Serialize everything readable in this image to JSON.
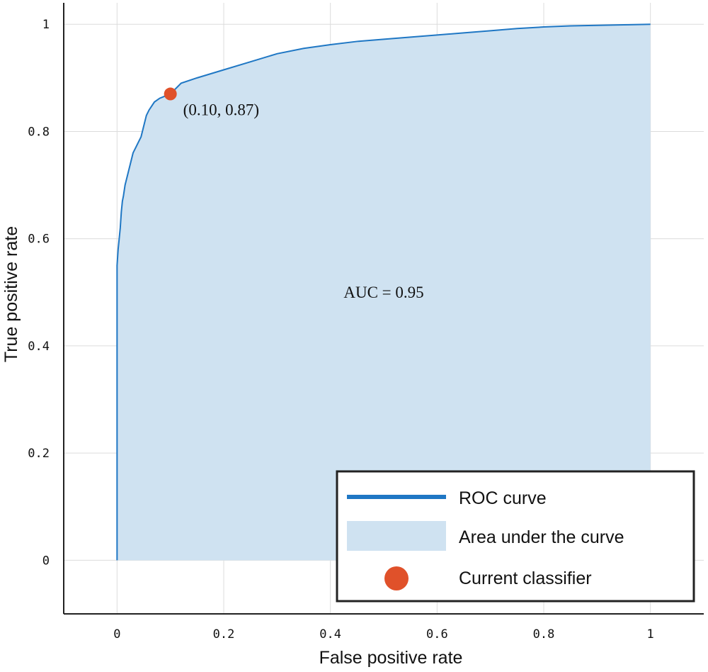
{
  "chart_data": {
    "type": "area",
    "xlabel": "False positive rate",
    "ylabel": "True positive rate",
    "xlim": [
      -0.1,
      1.1
    ],
    "ylim": [
      -0.1,
      1.04
    ],
    "xticks": [
      0,
      0.2,
      0.4,
      0.6,
      0.8,
      1
    ],
    "yticks": [
      0,
      0.2,
      0.4,
      0.6,
      0.8,
      1
    ],
    "xtick_labels": [
      "0",
      "0.2",
      "0.4",
      "0.6",
      "0.8",
      "1"
    ],
    "ytick_labels": [
      "0",
      "0.2",
      "0.4",
      "0.6",
      "0.8",
      "1"
    ],
    "grid": true,
    "legend_position": "bottom-right",
    "colors": {
      "curve": "#1f77c4",
      "area": "#cfe2f1",
      "marker": "#e0512a"
    },
    "series": [
      {
        "name": "ROC curve",
        "x": [
          0,
          0,
          0.002,
          0.004,
          0.006,
          0.008,
          0.01,
          0.012,
          0.015,
          0.02,
          0.025,
          0.03,
          0.035,
          0.04,
          0.045,
          0.05,
          0.055,
          0.06,
          0.07,
          0.08,
          0.09,
          0.1,
          0.12,
          0.15,
          0.2,
          0.25,
          0.3,
          0.35,
          0.4,
          0.45,
          0.5,
          0.55,
          0.6,
          0.65,
          0.7,
          0.75,
          0.8,
          0.85,
          0.9,
          0.95,
          1.0
        ],
        "y": [
          0,
          0.55,
          0.58,
          0.6,
          0.62,
          0.65,
          0.67,
          0.68,
          0.7,
          0.72,
          0.74,
          0.76,
          0.77,
          0.78,
          0.79,
          0.81,
          0.83,
          0.84,
          0.855,
          0.862,
          0.866,
          0.87,
          0.89,
          0.9,
          0.915,
          0.93,
          0.945,
          0.955,
          0.962,
          0.968,
          0.972,
          0.976,
          0.98,
          0.984,
          0.988,
          0.992,
          0.995,
          0.997,
          0.998,
          0.999,
          1.0
        ]
      }
    ],
    "area_label": "Area under the curve",
    "point": {
      "name": "Current classifier",
      "x": 0.1,
      "y": 0.87,
      "label": "(0.10, 0.87)"
    },
    "annotation": "AUC = 0.95"
  }
}
